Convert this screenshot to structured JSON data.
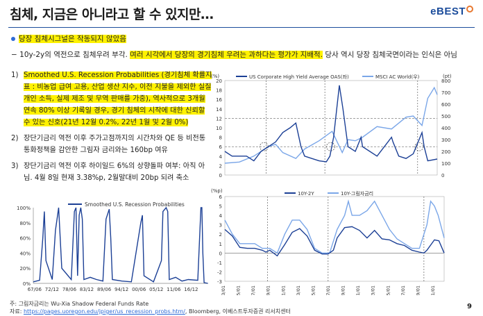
{
  "title": "침체, 지금은 아니라고 할 수 있지만…",
  "logo": {
    "prefix": "e",
    "text": "BEST"
  },
  "bullet_highlight": "당장 침체시그널은 작동되지 않았음",
  "dash_line": {
    "prefix": "−  10y-2y의 역전으로 침체우려 부각. ",
    "highlight": "여러 시각에서 당장의 경기침체 우려는 과하다는 평가가 지배적.",
    "suffix": " 당사 역시 당장 침체국면이라는 인식은 아님"
  },
  "items": [
    {
      "num": "1)",
      "highlight": "Smoothed U.S. Recession Probabilities (경기침체 확률지표 : 비농업 급여 고용, 산업 생산 지수, 이전 지불을 제외한 실질 개인 소득, 실제 제조 및 무역 판매를 가중), 역사적으로 3개월 연속 80% 이상 기록일 경우, 경기 침체의 시작에 대한 신뢰할 수 있는 신호(21년 12월 0.2%, 22년 1월 및 2월 0%)",
      "text": ""
    },
    {
      "num": "2)",
      "highlight": "",
      "text": "장단기금리 역전 이후 주가고점까지의 시간차와 QE 등 비전통 통화정책을 감안한 그림자 금리와는 160bp 여유"
    },
    {
      "num": "3)",
      "highlight": "",
      "text": "장단기금리 역전 이후 하이일드 6%의 상향돌파 여부: 아직 아님. 4월 8일 현재 3.38%p, 2월말대비 20bp 되려 축소"
    }
  ],
  "footnote": "주: 그림자금리는 Wu-Xia Shadow Federal Funds Rate",
  "source_prefix": "자료: ",
  "source_link": "https://pages.uoregon.edu/jpiger/us_recession_probs.htm/",
  "source_suffix": ", Bloomberg, 이베스트투자증권 리서치센터",
  "page_number": "9",
  "colors": {
    "dark_blue": "#1b3f95",
    "light_blue": "#7aa6e8",
    "accent": "#1b4c9b"
  },
  "chart_data": [
    {
      "type": "line",
      "series": [
        {
          "name": "Smoothed U.S. Recession Probabilities",
          "x": [
            1967,
            1969,
            1970,
            1970.5,
            1971,
            1973,
            1974,
            1975,
            1976,
            1979,
            1980,
            1980.5,
            1981,
            1981.5,
            1982,
            1982.5,
            1983,
            1985,
            1987,
            1989,
            1990,
            1991,
            1991.5,
            1992,
            1995,
            1998,
            2001,
            2001.5,
            2002,
            2005,
            2007.5,
            2008,
            2009,
            2009.5,
            2010,
            2012,
            2014,
            2016,
            2019,
            2020,
            2020.3,
            2020.6,
            2021,
            2022.2
          ],
          "values": [
            2,
            4,
            60,
            95,
            30,
            5,
            70,
            100,
            20,
            5,
            95,
            100,
            10,
            90,
            100,
            85,
            5,
            8,
            5,
            3,
            85,
            98,
            60,
            5,
            3,
            2,
            80,
            90,
            10,
            2,
            30,
            95,
            100,
            95,
            5,
            8,
            3,
            5,
            4,
            100,
            100,
            40,
            1,
            0
          ]
        }
      ],
      "x_tick_labels": [
        "67/06",
        "72/12",
        "78/06",
        "83/12",
        "89/06",
        "94/12",
        "00/06",
        "05/12",
        "11/06",
        "16/12"
      ],
      "x_ticks": [
        1967.4,
        1972.9,
        1978.4,
        1983.9,
        1989.4,
        1994.9,
        2000.4,
        2005.9,
        2011.4,
        2016.9
      ],
      "yticks": [
        "0%",
        "20%",
        "40%",
        "60%",
        "80%",
        "100%"
      ],
      "ylim": [
        0,
        100
      ]
    },
    {
      "type": "line",
      "left_unit": "(%)",
      "right_unit": "(pt)",
      "series": [
        {
          "name": "US Corporate High Yield Average OAS(좌)",
          "axis": "left",
          "x": [
            1993,
            1994,
            1995,
            1996,
            1997,
            1998,
            1999,
            2000,
            2001,
            2002,
            2002.8,
            2003.5,
            2004,
            2005,
            2006,
            2007,
            2007.5,
            2008,
            2008.8,
            2009.3,
            2010,
            2011,
            2011.8,
            2012,
            2013,
            2014,
            2015,
            2016,
            2016.2,
            2017,
            2018,
            2019,
            2020.2,
            2020.5,
            2021,
            2022.3
          ],
          "values": [
            5,
            4,
            4,
            4,
            3,
            5,
            6,
            7,
            9,
            10,
            11,
            6,
            4,
            3.5,
            3,
            2.8,
            4,
            8,
            19,
            14,
            6,
            5,
            8,
            6,
            5,
            4,
            6,
            8,
            7,
            4,
            3.5,
            4.5,
            9,
            6,
            3,
            3.38
          ]
        },
        {
          "name": "MSCI AC World(우)",
          "axis": "right",
          "x": [
            1993,
            1995,
            1997,
            1999,
            2000,
            2001,
            2002.8,
            2004,
            2006,
            2007.8,
            2009.2,
            2010,
            2011,
            2012,
            2014,
            2016,
            2018,
            2019,
            2020.2,
            2021,
            2021.9,
            2022.3
          ],
          "values": [
            100,
            110,
            160,
            240,
            260,
            190,
            140,
            220,
            290,
            370,
            190,
            300,
            290,
            320,
            410,
            390,
            490,
            500,
            420,
            650,
            740,
            680
          ]
        }
      ],
      "left_ticks": [
        0,
        2,
        4,
        6,
        8,
        10,
        12,
        14,
        16,
        18,
        20
      ],
      "right_ticks": [
        0,
        100,
        200,
        300,
        400,
        500,
        600,
        700,
        800
      ],
      "ylim": [
        0,
        20
      ],
      "y2lim": [
        0,
        800
      ]
    },
    {
      "type": "line",
      "unit": "(%p)",
      "series": [
        {
          "name": "10Y-2Y",
          "x": [
            1993,
            1994,
            1995,
            1996,
            1997,
            1998,
            1998.5,
            1999,
            2000,
            2001,
            2002,
            2003,
            2004,
            2005,
            2006,
            2006.8,
            2007.5,
            2008,
            2009,
            2010,
            2011,
            2012,
            2013,
            2014,
            2015,
            2016,
            2017,
            2018,
            2019,
            2019.6,
            2020,
            2021,
            2021.6,
            2022.3
          ],
          "values": [
            2.5,
            1.8,
            0.6,
            0.5,
            0.5,
            0.3,
            0.1,
            0.3,
            -0.3,
            0.9,
            2.2,
            2.6,
            1.8,
            0.3,
            -0.1,
            -0.1,
            0.3,
            1.6,
            2.7,
            2.8,
            2.4,
            1.6,
            2.4,
            1.5,
            1.4,
            1.0,
            0.8,
            0.3,
            0.1,
            0,
            0.3,
            1.4,
            1.3,
            0
          ]
        },
        {
          "name": "10Y-그림자금리",
          "x": [
            1993,
            1994,
            1995,
            1996,
            1997,
            1998,
            1999,
            2000,
            2001,
            2002,
            2003,
            2004,
            2005,
            2006,
            2007,
            2008,
            2009,
            2009.5,
            2010,
            2011,
            2012,
            2013,
            2014,
            2015,
            2016,
            2017,
            2018,
            2019,
            2020,
            2020.5,
            2021,
            2021.5,
            2022.3
          ],
          "values": [
            3.5,
            2,
            1,
            1,
            1,
            0.5,
            0.5,
            0,
            2,
            3.5,
            3.5,
            2.5,
            0.5,
            0,
            0,
            2.5,
            4,
            5.5,
            4,
            4,
            4.5,
            5.5,
            4,
            2.5,
            1.5,
            1,
            0.5,
            0.5,
            3,
            5.5,
            5,
            4,
            1.6
          ]
        }
      ],
      "yticks": [
        -3,
        -2,
        -1,
        0,
        1,
        2,
        3,
        4,
        5,
        6
      ],
      "x_tick_labels": [
        "93/01",
        "95/01",
        "97/01",
        "99/01",
        "01/01",
        "03/01",
        "05/01",
        "07/01",
        "09/01",
        "11/01",
        "13/01",
        "15/01",
        "17/01",
        "19/01",
        "21/01"
      ],
      "x_ticks": [
        1993,
        1995,
        1997,
        1999,
        2001,
        2003,
        2005,
        2007,
        2009,
        2011,
        2013,
        2015,
        2017,
        2019,
        2021
      ],
      "ylim": [
        -3,
        6
      ]
    }
  ]
}
